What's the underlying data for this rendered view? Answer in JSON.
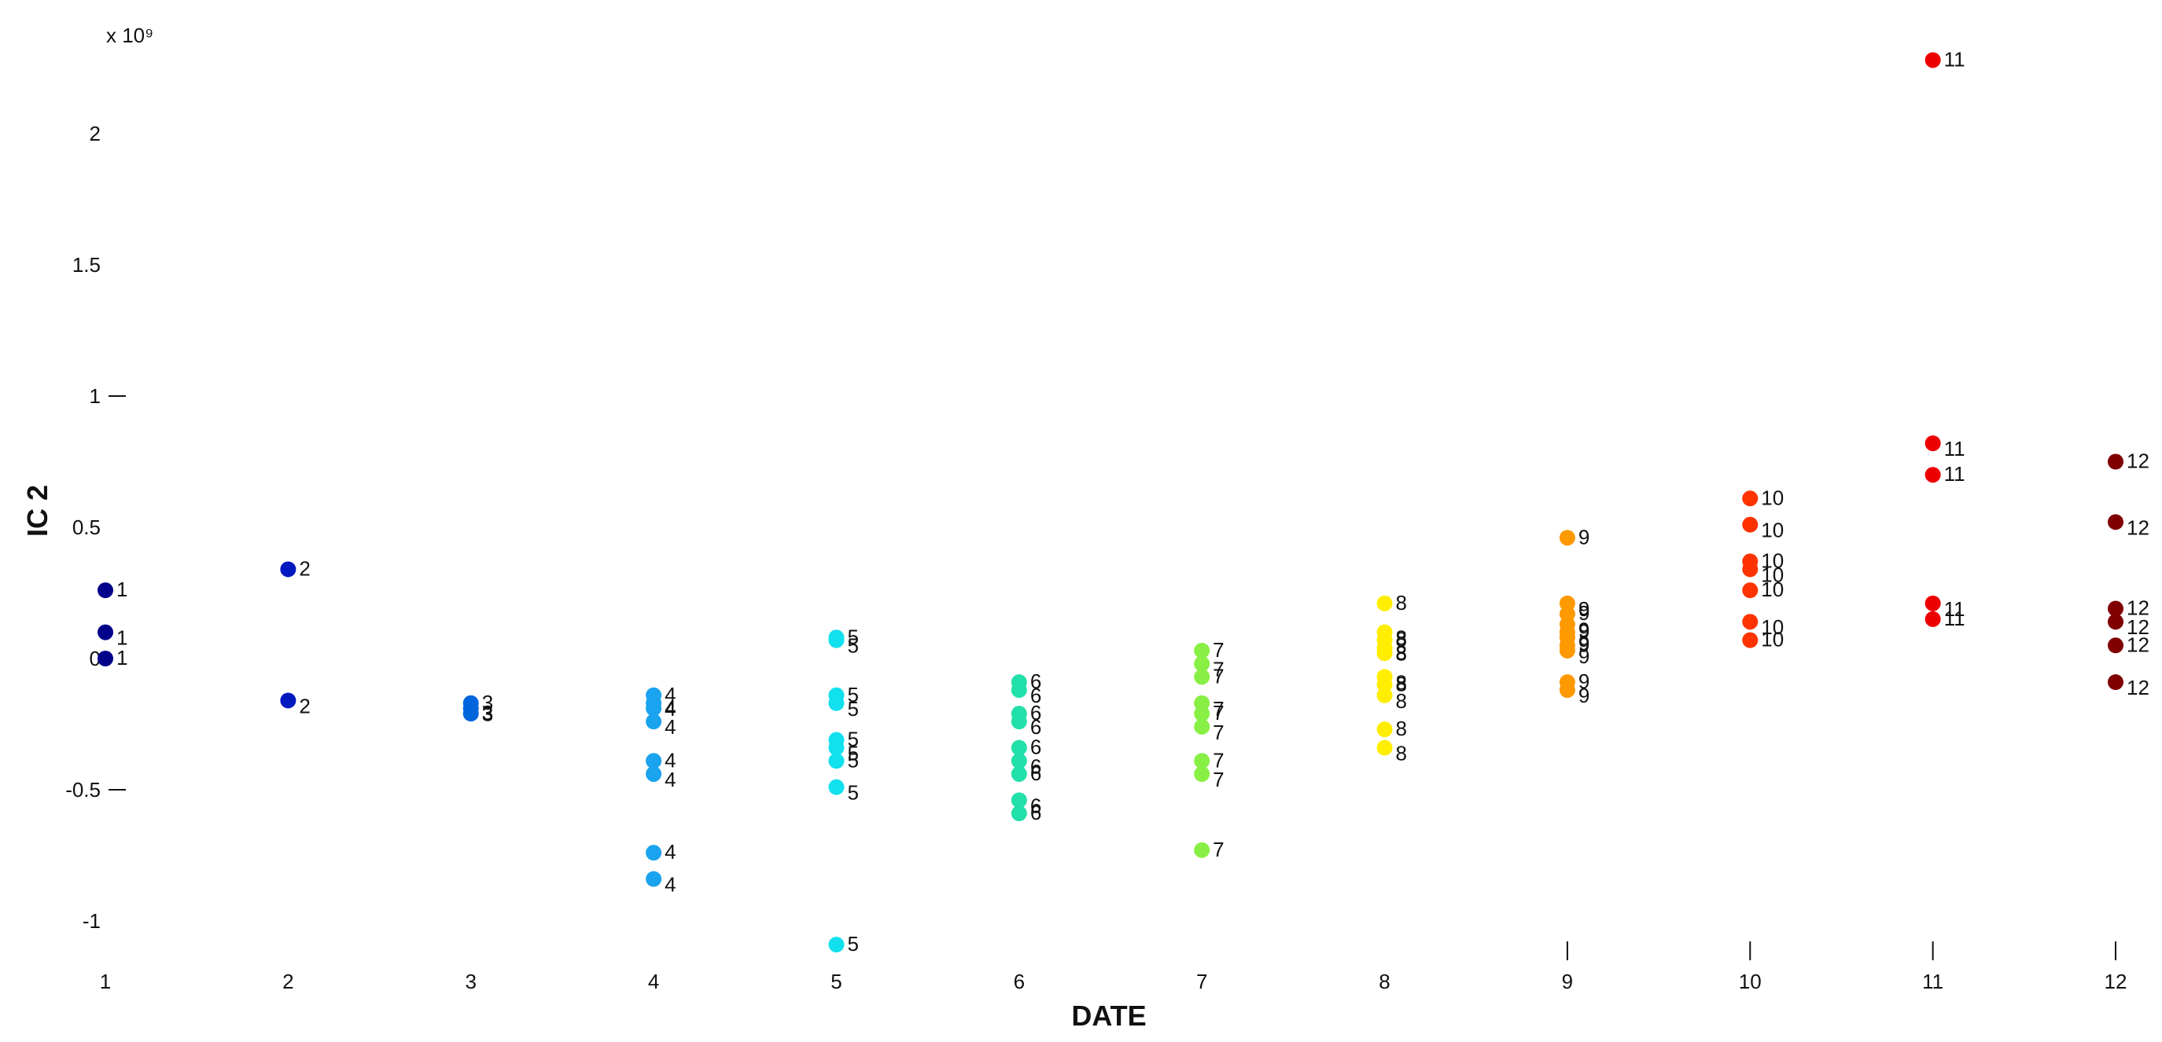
{
  "chart_data": {
    "type": "scatter",
    "xlabel": "DATE",
    "ylabel": "IC 2",
    "multiplier_label": "x 10⁹",
    "xlim": [
      1,
      12
    ],
    "ylim": [
      -1.15,
      2.35
    ],
    "x_ticks": [
      "1",
      "2",
      "3",
      "4",
      "5",
      "6",
      "7",
      "8",
      "9",
      "10",
      "11",
      "12"
    ],
    "y_ticks": [
      "-1",
      "-0.5",
      "0",
      "0.5",
      "1",
      "1.5",
      "2"
    ],
    "groups": [
      {
        "x": 1,
        "color": "#00008b",
        "y": [
          0.26,
          0.1,
          0.0
        ]
      },
      {
        "x": 2,
        "color": "#0018c0",
        "y": [
          0.34,
          -0.16
        ]
      },
      {
        "x": 3,
        "color": "#0066dd",
        "y": [
          -0.17,
          -0.19,
          -0.21
        ]
      },
      {
        "x": 4,
        "color": "#1aa3ee",
        "y": [
          -0.14,
          -0.17,
          -0.19,
          -0.24,
          -0.39,
          -0.44,
          -0.74,
          -0.84
        ]
      },
      {
        "x": 5,
        "color": "#11e0ee",
        "y": [
          0.08,
          0.07,
          -0.14,
          -0.17,
          -0.31,
          -0.34,
          -0.39,
          -0.49,
          -1.09
        ]
      },
      {
        "x": 6,
        "color": "#22e0aa",
        "y": [
          -0.09,
          -0.12,
          -0.21,
          -0.24,
          -0.34,
          -0.39,
          -0.44,
          -0.54,
          -0.59
        ]
      },
      {
        "x": 7,
        "color": "#88f044",
        "y": [
          0.03,
          -0.02,
          -0.07,
          -0.17,
          -0.21,
          -0.26,
          -0.39,
          -0.44,
          -0.73
        ]
      },
      {
        "x": 8,
        "color": "#ffee00",
        "y": [
          0.21,
          0.1,
          0.07,
          0.04,
          0.02,
          -0.07,
          -0.1,
          -0.14,
          -0.27,
          -0.34
        ]
      },
      {
        "x": 9,
        "color": "#ff9900",
        "y": [
          0.46,
          0.21,
          0.17,
          0.13,
          0.1,
          0.08,
          0.05,
          0.03,
          -0.09,
          -0.12
        ]
      },
      {
        "x": 10,
        "color": "#ff3300",
        "y": [
          0.61,
          0.51,
          0.37,
          0.34,
          0.26,
          0.14,
          0.07
        ]
      },
      {
        "x": 11,
        "color": "#ee0000",
        "y": [
          2.28,
          0.82,
          0.7,
          0.21,
          0.15
        ]
      },
      {
        "x": 12,
        "color": "#800000",
        "y": [
          0.75,
          0.52,
          0.19,
          0.14,
          0.05,
          -0.09
        ]
      }
    ]
  }
}
